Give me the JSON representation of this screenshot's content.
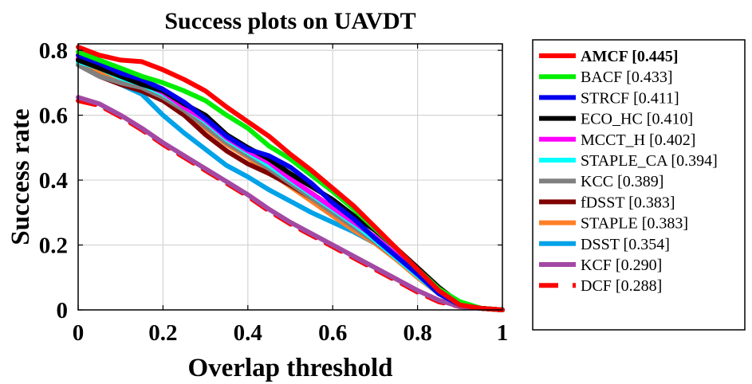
{
  "chart_data": {
    "type": "line",
    "title": "Success plots on UAVDT",
    "xlabel": "Overlap threshold",
    "ylabel": "Success rate",
    "xlim": [
      0,
      1
    ],
    "ylim": [
      0,
      0.82
    ],
    "xticks": [
      0,
      0.2,
      0.4,
      0.6,
      0.8,
      1
    ],
    "xtick_labels": [
      "0",
      "0.2",
      "0.4",
      "0.6",
      "0.8",
      "1"
    ],
    "yticks": [
      0,
      0.2,
      0.4,
      0.6,
      0.8
    ],
    "ytick_labels": [
      "0",
      "0.2",
      "0.4",
      "0.6",
      "0.8"
    ],
    "grid": true,
    "legend_position": "outside-right",
    "x": [
      0,
      0.05,
      0.1,
      0.15,
      0.2,
      0.25,
      0.3,
      0.35,
      0.4,
      0.45,
      0.5,
      0.55,
      0.6,
      0.65,
      0.7,
      0.75,
      0.8,
      0.85,
      0.9,
      0.95,
      1
    ],
    "series": [
      {
        "label": "AMCF [0.445]",
        "color": "#ff0000",
        "dash": false,
        "bold": true,
        "values": [
          0.81,
          0.785,
          0.77,
          0.765,
          0.74,
          0.71,
          0.675,
          0.625,
          0.58,
          0.535,
          0.48,
          0.43,
          0.375,
          0.32,
          0.255,
          0.19,
          0.125,
          0.06,
          0.015,
          0.005,
          0
        ]
      },
      {
        "label": "BACF [0.433]",
        "color": "#00ee00",
        "dash": false,
        "bold": false,
        "values": [
          0.795,
          0.77,
          0.745,
          0.72,
          0.7,
          0.675,
          0.645,
          0.6,
          0.56,
          0.505,
          0.465,
          0.415,
          0.365,
          0.31,
          0.25,
          0.19,
          0.125,
          0.065,
          0.025,
          0.005,
          0
        ]
      },
      {
        "label": "STRCF [0.411]",
        "color": "#0000ee",
        "dash": false,
        "bold": false,
        "values": [
          0.785,
          0.76,
          0.73,
          0.71,
          0.68,
          0.64,
          0.59,
          0.535,
          0.495,
          0.475,
          0.44,
          0.39,
          0.33,
          0.28,
          0.22,
          0.165,
          0.11,
          0.05,
          0.015,
          0.005,
          0
        ]
      },
      {
        "label": "ECO_HC [0.410]",
        "color": "#000000",
        "dash": false,
        "bold": false,
        "values": [
          0.77,
          0.745,
          0.72,
          0.695,
          0.675,
          0.635,
          0.6,
          0.54,
          0.5,
          0.465,
          0.42,
          0.38,
          0.34,
          0.29,
          0.245,
          0.19,
          0.13,
          0.07,
          0.02,
          0.005,
          0
        ]
      },
      {
        "label": "MCCT_H [0.402]",
        "color": "#ff00ff",
        "dash": false,
        "bold": false,
        "values": [
          0.775,
          0.75,
          0.72,
          0.7,
          0.67,
          0.625,
          0.585,
          0.53,
          0.49,
          0.455,
          0.405,
          0.36,
          0.315,
          0.27,
          0.225,
          0.17,
          0.11,
          0.055,
          0.02,
          0.005,
          0
        ]
      },
      {
        "label": "STAPLE_CA [0.394]",
        "color": "#00ffff",
        "dash": false,
        "bold": false,
        "values": [
          0.765,
          0.745,
          0.715,
          0.695,
          0.665,
          0.625,
          0.58,
          0.525,
          0.485,
          0.445,
          0.4,
          0.355,
          0.31,
          0.265,
          0.215,
          0.16,
          0.105,
          0.05,
          0.015,
          0.005,
          0
        ]
      },
      {
        "label": "KCC [0.389]",
        "color": "#808080",
        "dash": false,
        "bold": false,
        "values": [
          0.755,
          0.72,
          0.7,
          0.685,
          0.655,
          0.615,
          0.565,
          0.515,
          0.475,
          0.435,
          0.39,
          0.345,
          0.3,
          0.255,
          0.21,
          0.16,
          0.105,
          0.05,
          0.015,
          0.005,
          0
        ]
      },
      {
        "label": "fDSST [0.383]",
        "color": "#7f0000",
        "dash": false,
        "bold": false,
        "values": [
          0.755,
          0.72,
          0.695,
          0.675,
          0.645,
          0.6,
          0.54,
          0.49,
          0.45,
          0.42,
          0.385,
          0.345,
          0.305,
          0.265,
          0.22,
          0.165,
          0.11,
          0.055,
          0.015,
          0.005,
          0
        ]
      },
      {
        "label": "STAPLE [0.383]",
        "color": "#ff7f27",
        "dash": false,
        "bold": false,
        "values": [
          0.76,
          0.735,
          0.705,
          0.68,
          0.65,
          0.605,
          0.56,
          0.51,
          0.47,
          0.425,
          0.38,
          0.335,
          0.29,
          0.245,
          0.205,
          0.155,
          0.1,
          0.05,
          0.015,
          0.005,
          0
        ]
      },
      {
        "label": "DSST [0.354]",
        "color": "#00a2e8",
        "dash": false,
        "bold": false,
        "values": [
          0.765,
          0.725,
          0.695,
          0.665,
          0.6,
          0.545,
          0.495,
          0.445,
          0.41,
          0.37,
          0.335,
          0.3,
          0.27,
          0.24,
          0.205,
          0.16,
          0.11,
          0.055,
          0.015,
          0.005,
          0
        ]
      },
      {
        "label": "KCF [0.290]",
        "color": "#a349a4",
        "dash": false,
        "bold": false,
        "values": [
          0.655,
          0.635,
          0.6,
          0.56,
          0.515,
          0.475,
          0.435,
          0.395,
          0.355,
          0.31,
          0.27,
          0.235,
          0.2,
          0.165,
          0.13,
          0.095,
          0.06,
          0.03,
          0.01,
          0.005,
          0
        ]
      },
      {
        "label": "DCF [0.288]",
        "color": "#ff0000",
        "dash": true,
        "bold": false,
        "values": [
          0.645,
          0.63,
          0.595,
          0.555,
          0.51,
          0.47,
          0.43,
          0.39,
          0.35,
          0.305,
          0.265,
          0.23,
          0.195,
          0.16,
          0.125,
          0.09,
          0.055,
          0.025,
          0.01,
          0.005,
          0
        ]
      }
    ]
  }
}
